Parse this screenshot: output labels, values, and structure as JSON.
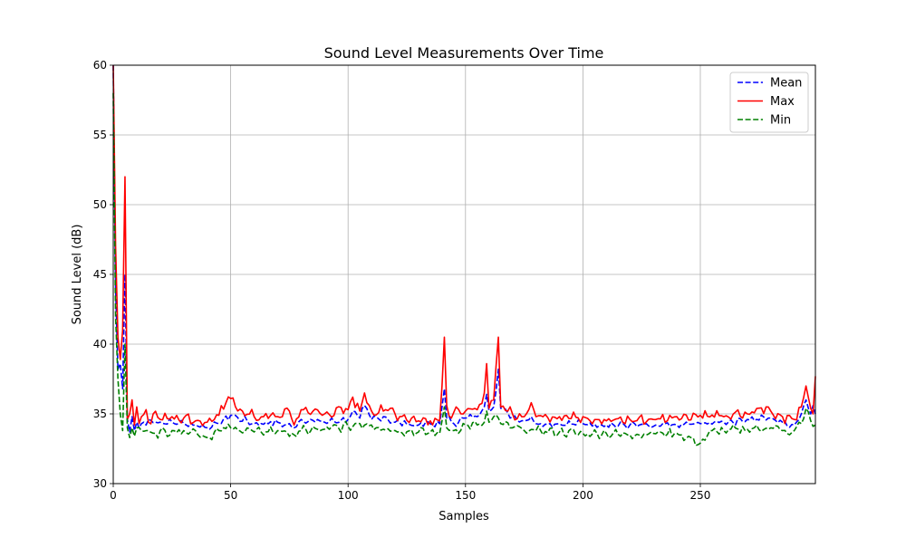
{
  "chart_data": {
    "type": "line",
    "title": "Sound Level Measurements Over Time",
    "xlabel": "Samples",
    "ylabel": "Sound Level (dB)",
    "xlim": [
      0,
      299
    ],
    "ylim": [
      30,
      60
    ],
    "xticks": [
      0,
      50,
      100,
      150,
      200,
      250
    ],
    "yticks": [
      30,
      35,
      40,
      45,
      50,
      55,
      60
    ],
    "grid": true,
    "legend_position": "top-right",
    "series": [
      {
        "name": "Mean",
        "color": "#0000ff",
        "dash": "dashed",
        "anchors": [
          [
            0,
            60
          ],
          [
            1,
            44
          ],
          [
            2,
            38.2
          ],
          [
            3,
            38.6
          ],
          [
            4,
            36.8
          ],
          [
            5,
            45
          ],
          [
            6,
            34.6
          ],
          [
            7,
            33.7
          ],
          [
            8,
            34.8
          ],
          [
            9,
            33.8
          ],
          [
            10,
            34.4
          ],
          [
            11,
            34
          ],
          [
            12,
            34.3
          ],
          [
            13,
            34.4
          ],
          [
            14,
            34.2
          ],
          [
            15,
            34.6
          ],
          [
            18,
            34.4
          ],
          [
            25,
            34.4
          ],
          [
            30,
            34.3
          ],
          [
            35,
            34.2
          ],
          [
            40,
            34
          ],
          [
            45,
            34.3
          ],
          [
            50,
            34.9
          ],
          [
            60,
            34.3
          ],
          [
            70,
            34.4
          ],
          [
            77,
            34
          ],
          [
            80,
            34.6
          ],
          [
            90,
            34.4
          ],
          [
            100,
            34.6
          ],
          [
            102,
            35.2
          ],
          [
            105,
            34.7
          ],
          [
            107,
            35.6
          ],
          [
            110,
            34.6
          ],
          [
            115,
            34.8
          ],
          [
            120,
            34.4
          ],
          [
            130,
            34.2
          ],
          [
            135,
            34.3
          ],
          [
            139,
            34.3
          ],
          [
            140,
            35.5
          ],
          [
            141,
            36.8
          ],
          [
            142,
            34.7
          ],
          [
            145,
            34.3
          ],
          [
            150,
            34.7
          ],
          [
            155,
            34.8
          ],
          [
            158,
            35.5
          ],
          [
            159,
            36.4
          ],
          [
            160,
            35.2
          ],
          [
            162,
            35.5
          ],
          [
            164,
            38.2
          ],
          [
            165,
            35.4
          ],
          [
            170,
            34.8
          ],
          [
            175,
            34.5
          ],
          [
            178,
            34.8
          ],
          [
            180,
            34.3
          ],
          [
            190,
            34.3
          ],
          [
            200,
            34.3
          ],
          [
            210,
            34.2
          ],
          [
            220,
            34.2
          ],
          [
            230,
            34.1
          ],
          [
            240,
            34.2
          ],
          [
            250,
            34.3
          ],
          [
            260,
            34.4
          ],
          [
            270,
            34.6
          ],
          [
            280,
            34.7
          ],
          [
            285,
            34.4
          ],
          [
            290,
            34.2
          ],
          [
            293,
            35
          ],
          [
            295,
            36
          ],
          [
            297,
            35
          ],
          [
            298,
            35.6
          ],
          [
            299,
            35
          ]
        ]
      },
      {
        "name": "Max",
        "color": "#ff0000",
        "dash": "solid",
        "anchors": [
          [
            0,
            60
          ],
          [
            1,
            47
          ],
          [
            2,
            40.5
          ],
          [
            3,
            38.9
          ],
          [
            4,
            41
          ],
          [
            5,
            52
          ],
          [
            6,
            34.6
          ],
          [
            7,
            35
          ],
          [
            8,
            36
          ],
          [
            9,
            34.2
          ],
          [
            10,
            35.5
          ],
          [
            11,
            34.3
          ],
          [
            12,
            34.8
          ],
          [
            14,
            35.3
          ],
          [
            15,
            34.4
          ],
          [
            17,
            35
          ],
          [
            20,
            34.6
          ],
          [
            25,
            34.8
          ],
          [
            30,
            34.7
          ],
          [
            35,
            34.5
          ],
          [
            40,
            34.4
          ],
          [
            45,
            34.9
          ],
          [
            48,
            35.8
          ],
          [
            50,
            36.1
          ],
          [
            55,
            35.2
          ],
          [
            60,
            34.8
          ],
          [
            70,
            34.8
          ],
          [
            75,
            35.2
          ],
          [
            77,
            34.2
          ],
          [
            80,
            35.3
          ],
          [
            90,
            35
          ],
          [
            100,
            35.3
          ],
          [
            102,
            36.2
          ],
          [
            105,
            35.2
          ],
          [
            107,
            36.5
          ],
          [
            110,
            35.2
          ],
          [
            115,
            35.2
          ],
          [
            118,
            35.4
          ],
          [
            120,
            35
          ],
          [
            130,
            34.5
          ],
          [
            135,
            34.5
          ],
          [
            139,
            34.5
          ],
          [
            140,
            37
          ],
          [
            141,
            40.5
          ],
          [
            142,
            35.6
          ],
          [
            144,
            34.7
          ],
          [
            146,
            35.5
          ],
          [
            150,
            35.2
          ],
          [
            155,
            35.3
          ],
          [
            158,
            36.5
          ],
          [
            159,
            38.6
          ],
          [
            160,
            35.4
          ],
          [
            162,
            36
          ],
          [
            164,
            40.5
          ],
          [
            165,
            35.5
          ],
          [
            170,
            35
          ],
          [
            175,
            34.8
          ],
          [
            178,
            35.8
          ],
          [
            180,
            34.8
          ],
          [
            190,
            34.8
          ],
          [
            200,
            34.8
          ],
          [
            210,
            34.5
          ],
          [
            220,
            34.6
          ],
          [
            230,
            34.6
          ],
          [
            240,
            34.8
          ],
          [
            250,
            34.9
          ],
          [
            260,
            34.8
          ],
          [
            270,
            35
          ],
          [
            278,
            35.5
          ],
          [
            280,
            35.2
          ],
          [
            285,
            34.8
          ],
          [
            290,
            34.6
          ],
          [
            293,
            35.5
          ],
          [
            295,
            37
          ],
          [
            297,
            35.4
          ],
          [
            298,
            35
          ],
          [
            299,
            37.7
          ]
        ]
      },
      {
        "name": "Min",
        "color": "#008000",
        "dash": "dashed",
        "anchors": [
          [
            0,
            58
          ],
          [
            1,
            42
          ],
          [
            2,
            37.5
          ],
          [
            3,
            35
          ],
          [
            4,
            33.8
          ],
          [
            5,
            40
          ],
          [
            6,
            34
          ],
          [
            7,
            33.3
          ],
          [
            8,
            34
          ],
          [
            9,
            33.4
          ],
          [
            10,
            34
          ],
          [
            12,
            33.8
          ],
          [
            15,
            33.8
          ],
          [
            18,
            33.6
          ],
          [
            25,
            33.8
          ],
          [
            30,
            33.8
          ],
          [
            35,
            33.8
          ],
          [
            40,
            33.3
          ],
          [
            45,
            33.8
          ],
          [
            50,
            34
          ],
          [
            60,
            33.7
          ],
          [
            70,
            33.8
          ],
          [
            77,
            33.5
          ],
          [
            80,
            33.8
          ],
          [
            90,
            33.9
          ],
          [
            100,
            34.1
          ],
          [
            105,
            34.3
          ],
          [
            110,
            34.2
          ],
          [
            115,
            33.9
          ],
          [
            120,
            33.8
          ],
          [
            130,
            33.7
          ],
          [
            135,
            33.7
          ],
          [
            139,
            33.6
          ],
          [
            140,
            34.5
          ],
          [
            141,
            35.5
          ],
          [
            142,
            34
          ],
          [
            145,
            33.8
          ],
          [
            150,
            34.2
          ],
          [
            155,
            34.2
          ],
          [
            158,
            34.4
          ],
          [
            159,
            35.2
          ],
          [
            160,
            34.4
          ],
          [
            162,
            34.8
          ],
          [
            164,
            34.7
          ],
          [
            165,
            34.3
          ],
          [
            170,
            34
          ],
          [
            175,
            33.8
          ],
          [
            180,
            33.8
          ],
          [
            190,
            33.7
          ],
          [
            200,
            33.6
          ],
          [
            210,
            33.6
          ],
          [
            220,
            33.5
          ],
          [
            230,
            33.6
          ],
          [
            240,
            33.6
          ],
          [
            250,
            32.9
          ],
          [
            255,
            33.8
          ],
          [
            260,
            33.8
          ],
          [
            270,
            33.9
          ],
          [
            280,
            34
          ],
          [
            285,
            33.8
          ],
          [
            288,
            33.5
          ],
          [
            290,
            33.8
          ],
          [
            293,
            34.3
          ],
          [
            295,
            35.4
          ],
          [
            297,
            34.5
          ],
          [
            298,
            34.1
          ],
          [
            299,
            34.2
          ]
        ]
      }
    ]
  }
}
